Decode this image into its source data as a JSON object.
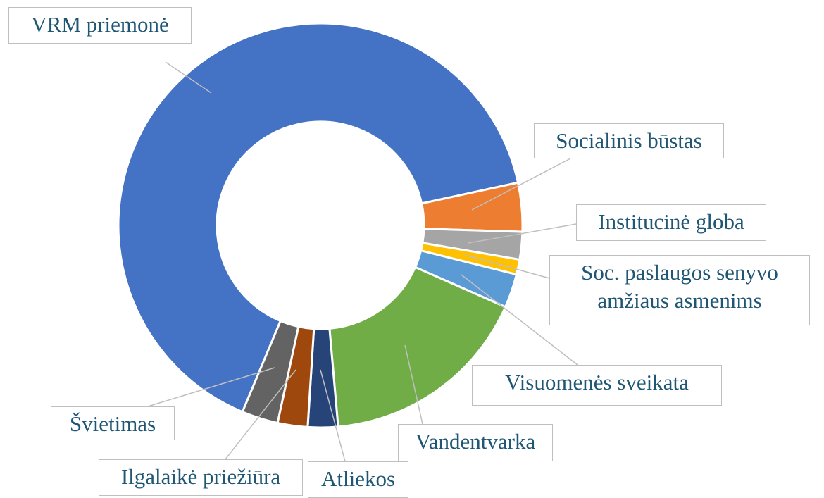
{
  "chart_data": {
    "type": "donut",
    "categories": [
      "VRM priemonė",
      "Socialinis būstas",
      "Institucinė globa",
      "Soc. paslaugos senyvo amžiaus asmenims",
      "Visuomenės sveikata",
      "Vandentvarka",
      "Atliekos",
      "Ilgalaikė priežiūra",
      "Švietimas"
    ],
    "values": [
      65.3,
      3.9,
      2.2,
      1.2,
      2.7,
      17,
      2.4,
      2.4,
      2.9
    ],
    "colors": [
      "#4472c4",
      "#ed7d31",
      "#a5a5a5",
      "#ffc000",
      "#5b9bd5",
      "#70ad47",
      "#264478",
      "#9e480e",
      "#636363"
    ]
  }
}
